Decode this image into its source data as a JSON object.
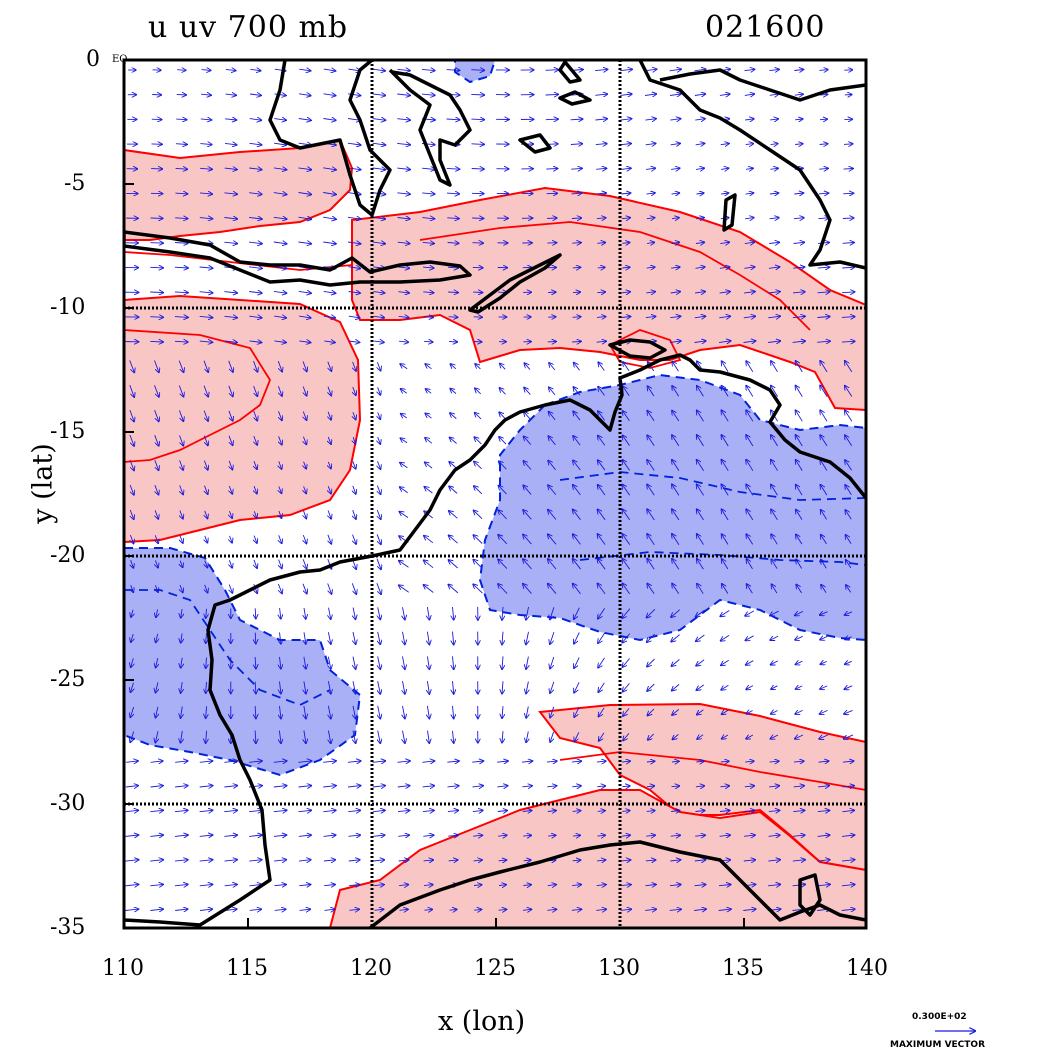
{
  "header": {
    "title": "u uv 700 mb",
    "timestamp": "021600"
  },
  "map": {
    "x_label": "x (lon)",
    "y_label": "y (lat)",
    "x_range": [
      110,
      140
    ],
    "y_range": [
      -35,
      0
    ],
    "x_ticks": [
      "110",
      "115",
      "120",
      "125",
      "130",
      "135",
      "140"
    ],
    "y_ticks": [
      "0",
      "-5",
      "-10",
      "-15",
      "-20",
      "-25",
      "-30",
      "-35"
    ],
    "corner_label": "EQ",
    "grid_lines_lon": [
      120,
      130
    ],
    "grid_lines_lat": [
      -10,
      -20,
      -30
    ],
    "colors": {
      "positive_fill": "#f9c6c6",
      "positive_contour": "#ff0000",
      "negative_fill": "#aab0f5",
      "negative_contour": "#0022dd",
      "vectors": "#1a1adf",
      "coast": "#000000"
    }
  },
  "vector_legend": {
    "value": "0.300E+02",
    "label": "MAXIMUM VECTOR"
  }
}
